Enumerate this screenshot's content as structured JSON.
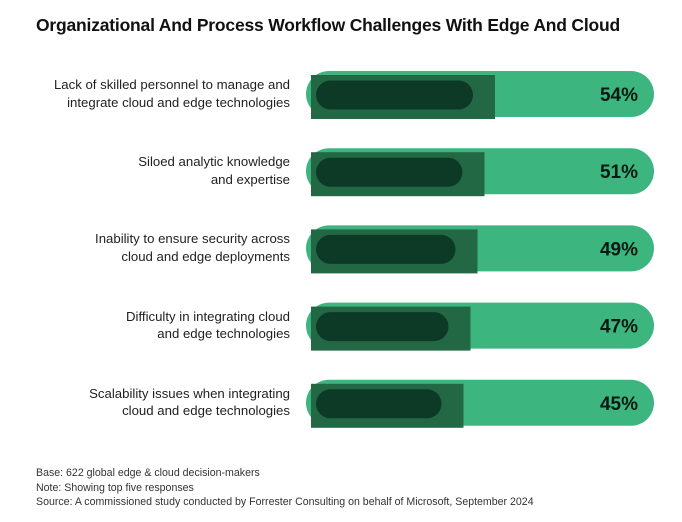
{
  "title": "Organizational And Process Workflow Challenges With Edge And Cloud",
  "colors": {
    "track": "#3cb57f",
    "fill": "#236845",
    "pill": "#0d3a27",
    "value_text": "#0a1a12"
  },
  "chart_data": {
    "type": "bar",
    "orientation": "horizontal",
    "title": "Organizational And Process Workflow Challenges With Edge And Cloud",
    "unit": "%",
    "xlim": [
      0,
      100
    ],
    "categories": [
      [
        "Lack of skilled personnel to manage and",
        "integrate cloud and edge technologies"
      ],
      [
        "Siloed analytic knowledge",
        "and expertise"
      ],
      [
        "Inability to ensure security across",
        "cloud and edge deployments"
      ],
      [
        "Difficulty in integrating cloud",
        "and edge technologies"
      ],
      [
        "Scalability issues when integrating",
        "cloud and edge technologies"
      ]
    ],
    "values": [
      54,
      51,
      49,
      47,
      45
    ],
    "value_labels": [
      "54%",
      "51%",
      "49%",
      "47%",
      "45%"
    ]
  },
  "footnotes": [
    "Base: 622 global edge & cloud decision-makers",
    "Note: Showing top five responses",
    "Source: A commissioned study conducted by Forrester Consulting on behalf of Microsoft, September 2024"
  ]
}
